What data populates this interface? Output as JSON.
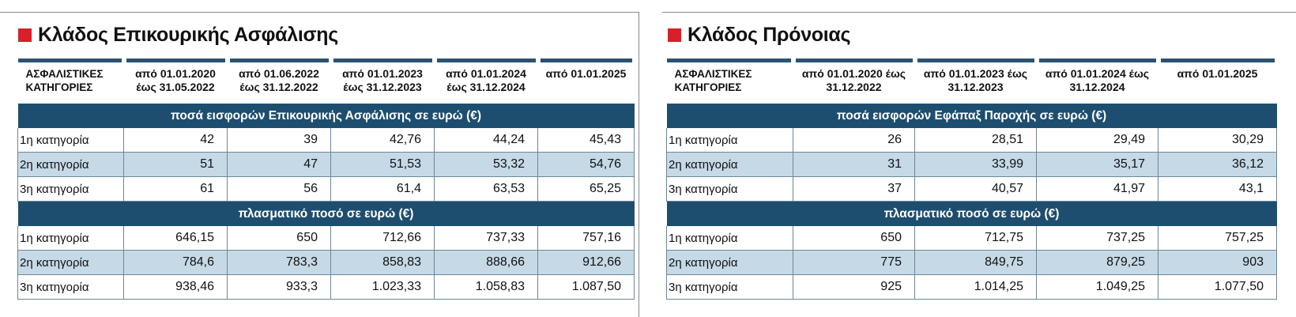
{
  "left": {
    "title": "Κλάδος Επικουρικής Ασφάλισης",
    "header": [
      "ΑΣΦΑΛΙΣΤΙΚΕΣ ΚΑΤΗΓΟΡΙΕΣ",
      "από 01.01.2020 έως 31.05.2022",
      "από 01.06.2022 έως 31.12.2022",
      "από 01.01.2023 έως 31.12.2023",
      "από 01.01.2024 έως 31.12.2024",
      "από 01.01.2025"
    ],
    "section1": "ποσά εισφορών Επικουρικής Ασφάλισης σε ευρώ (€)",
    "rows1": [
      [
        "1η κατηγορία",
        "42",
        "39",
        "42,76",
        "44,24",
        "45,43"
      ],
      [
        "2η κατηγορία",
        "51",
        "47",
        "51,53",
        "53,32",
        "54,76"
      ],
      [
        "3η κατηγορία",
        "61",
        "56",
        "61,4",
        "63,53",
        "65,25"
      ]
    ],
    "section2": "πλασματικό ποσό σε ευρώ (€)",
    "rows2": [
      [
        "1η κατηγορία",
        "646,15",
        "650",
        "712,66",
        "737,33",
        "757,16"
      ],
      [
        "2η κατηγορία",
        "784,6",
        "783,3",
        "858,83",
        "888,66",
        "912,66"
      ],
      [
        "3η κατηγορία",
        "938,46",
        "933,3",
        "1.023,33",
        "1.058,83",
        "1.087,50"
      ]
    ]
  },
  "right": {
    "title": "Κλάδος Πρόνοιας",
    "header": [
      "ΑΣΦΑΛΙΣΤΙΚΕΣ ΚΑΤΗΓΟΡΙΕΣ",
      "από 01.01.2020 έως 31.12.2022",
      "από 01.01.2023 έως 31.12.2023",
      "από 01.01.2024 έως 31.12.2024",
      "από 01.01.2025"
    ],
    "section1": "ποσά εισφορών Εφάπαξ Παροχής σε ευρώ (€)",
    "rows1": [
      [
        "1η κατηγορία",
        "26",
        "28,51",
        "29,49",
        "30,29"
      ],
      [
        "2η κατηγορία",
        "31",
        "33,99",
        "35,17",
        "36,12"
      ],
      [
        "3η κατηγορία",
        "37",
        "40,57",
        "41,97",
        "43,1"
      ]
    ],
    "section2": "πλασματικό ποσό σε ευρώ (€)",
    "rows2": [
      [
        "1η κατηγορία",
        "650",
        "712,75",
        "737,25",
        "757,25"
      ],
      [
        "2η κατηγορία",
        "775",
        "849,75",
        "879,25",
        "903"
      ],
      [
        "3η κατηγορία",
        "925",
        "1.014,25",
        "1.049,25",
        "1.077,50"
      ]
    ]
  },
  "colors": {
    "accent": "#d7202a",
    "band": "#1e4e6f",
    "alt_row": "#c5d9e6",
    "header_rule": "#2a5272"
  }
}
